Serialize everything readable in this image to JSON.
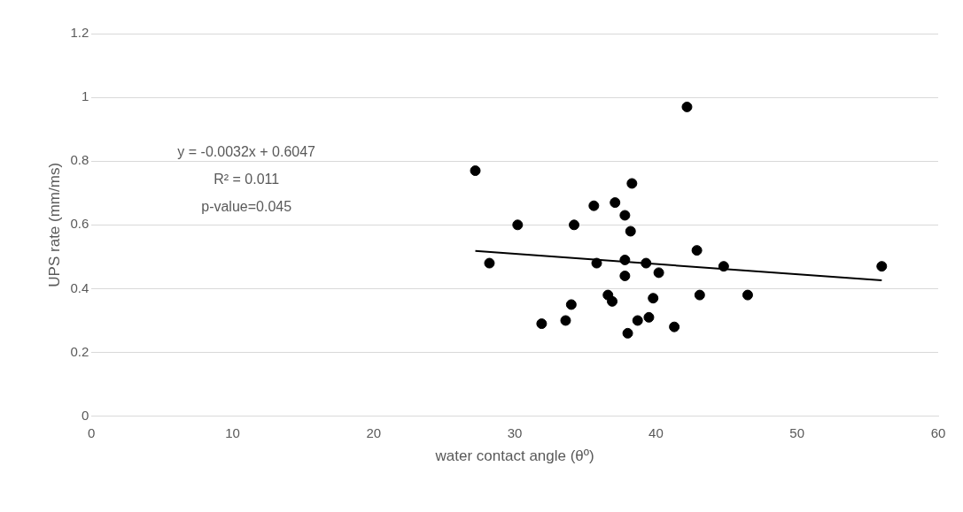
{
  "chart_data": {
    "type": "scatter",
    "xlabel": "water contact angle (θº)",
    "ylabel": "UPS rate (mm/ms)",
    "xlim": [
      0,
      60
    ],
    "xticks": [
      0,
      10,
      20,
      30,
      40,
      50,
      60
    ],
    "ylim": [
      0,
      1.2
    ],
    "yticks": [
      0,
      0.2,
      0.4,
      0.6,
      0.8,
      1,
      1.2
    ],
    "grid": "y",
    "legend": false,
    "marker": "circle",
    "series": [
      {
        "color": "#000000",
        "x": [
          27.2,
          28.2,
          30.2,
          31.9,
          33.6,
          34.0,
          34.2,
          35.6,
          35.8,
          36.6,
          36.9,
          37.1,
          37.8,
          37.8,
          37.8,
          38.0,
          38.2,
          38.3,
          38.7,
          39.3,
          39.5,
          39.8,
          40.2,
          41.3,
          42.2,
          42.9,
          43.1,
          44.8,
          46.5,
          56.0
        ],
        "values": [
          0.77,
          0.48,
          0.6,
          0.29,
          0.3,
          0.35,
          0.6,
          0.66,
          0.48,
          0.38,
          0.36,
          0.67,
          0.63,
          0.49,
          0.44,
          0.26,
          0.58,
          0.73,
          0.3,
          0.48,
          0.31,
          0.37,
          0.45,
          0.28,
          0.97,
          0.52,
          0.38,
          0.47,
          0.38,
          0.47
        ]
      },
      {
        "type": "line",
        "color": "#000000",
        "x": [
          27.2,
          56.0
        ],
        "values": [
          0.518,
          0.426
        ],
        "marker": "none"
      }
    ],
    "annotations": [
      "y = -0.0032x + 0.6047",
      "R² = 0.011",
      "p-value=0.045"
    ]
  }
}
